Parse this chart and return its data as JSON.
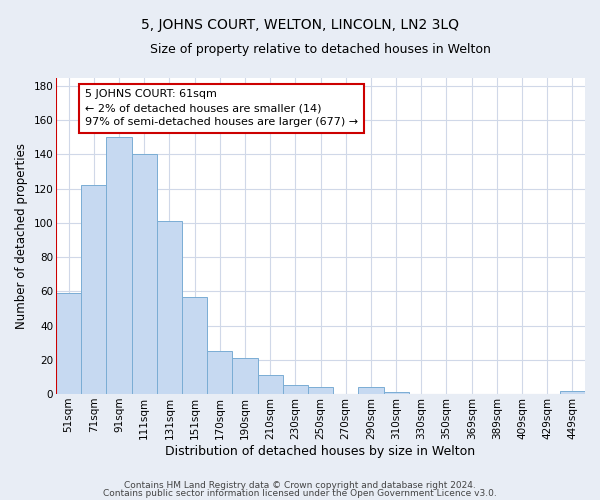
{
  "title": "5, JOHNS COURT, WELTON, LINCOLN, LN2 3LQ",
  "subtitle": "Size of property relative to detached houses in Welton",
  "xlabel": "Distribution of detached houses by size in Welton",
  "ylabel": "Number of detached properties",
  "categories": [
    "51sqm",
    "71sqm",
    "91sqm",
    "111sqm",
    "131sqm",
    "151sqm",
    "170sqm",
    "190sqm",
    "210sqm",
    "230sqm",
    "250sqm",
    "270sqm",
    "290sqm",
    "310sqm",
    "330sqm",
    "350sqm",
    "369sqm",
    "389sqm",
    "409sqm",
    "429sqm",
    "449sqm"
  ],
  "values": [
    59,
    122,
    150,
    140,
    101,
    57,
    25,
    21,
    11,
    5,
    4,
    0,
    4,
    1,
    0,
    0,
    0,
    0,
    0,
    0,
    2
  ],
  "bar_color": "#c6d9f1",
  "bar_edge_color": "#7aadd4",
  "red_line_color": "#cc0000",
  "annotation_line1": "5 JOHNS COURT: 61sqm",
  "annotation_line2": "← 2% of detached houses are smaller (14)",
  "annotation_line3": "97% of semi-detached houses are larger (677) →",
  "annotation_box_color": "#ffffff",
  "annotation_box_edge_color": "#cc0000",
  "ylim": [
    0,
    185
  ],
  "yticks": [
    0,
    20,
    40,
    60,
    80,
    100,
    120,
    140,
    160,
    180
  ],
  "plot_bg_color": "#ffffff",
  "fig_bg_color": "#e8edf5",
  "grid_color": "#d0d8e8",
  "footer_line1": "Contains HM Land Registry data © Crown copyright and database right 2024.",
  "footer_line2": "Contains public sector information licensed under the Open Government Licence v3.0.",
  "title_fontsize": 10,
  "subtitle_fontsize": 9,
  "xlabel_fontsize": 9,
  "ylabel_fontsize": 8.5,
  "tick_fontsize": 7.5,
  "annotation_fontsize": 8,
  "footer_fontsize": 6.5
}
